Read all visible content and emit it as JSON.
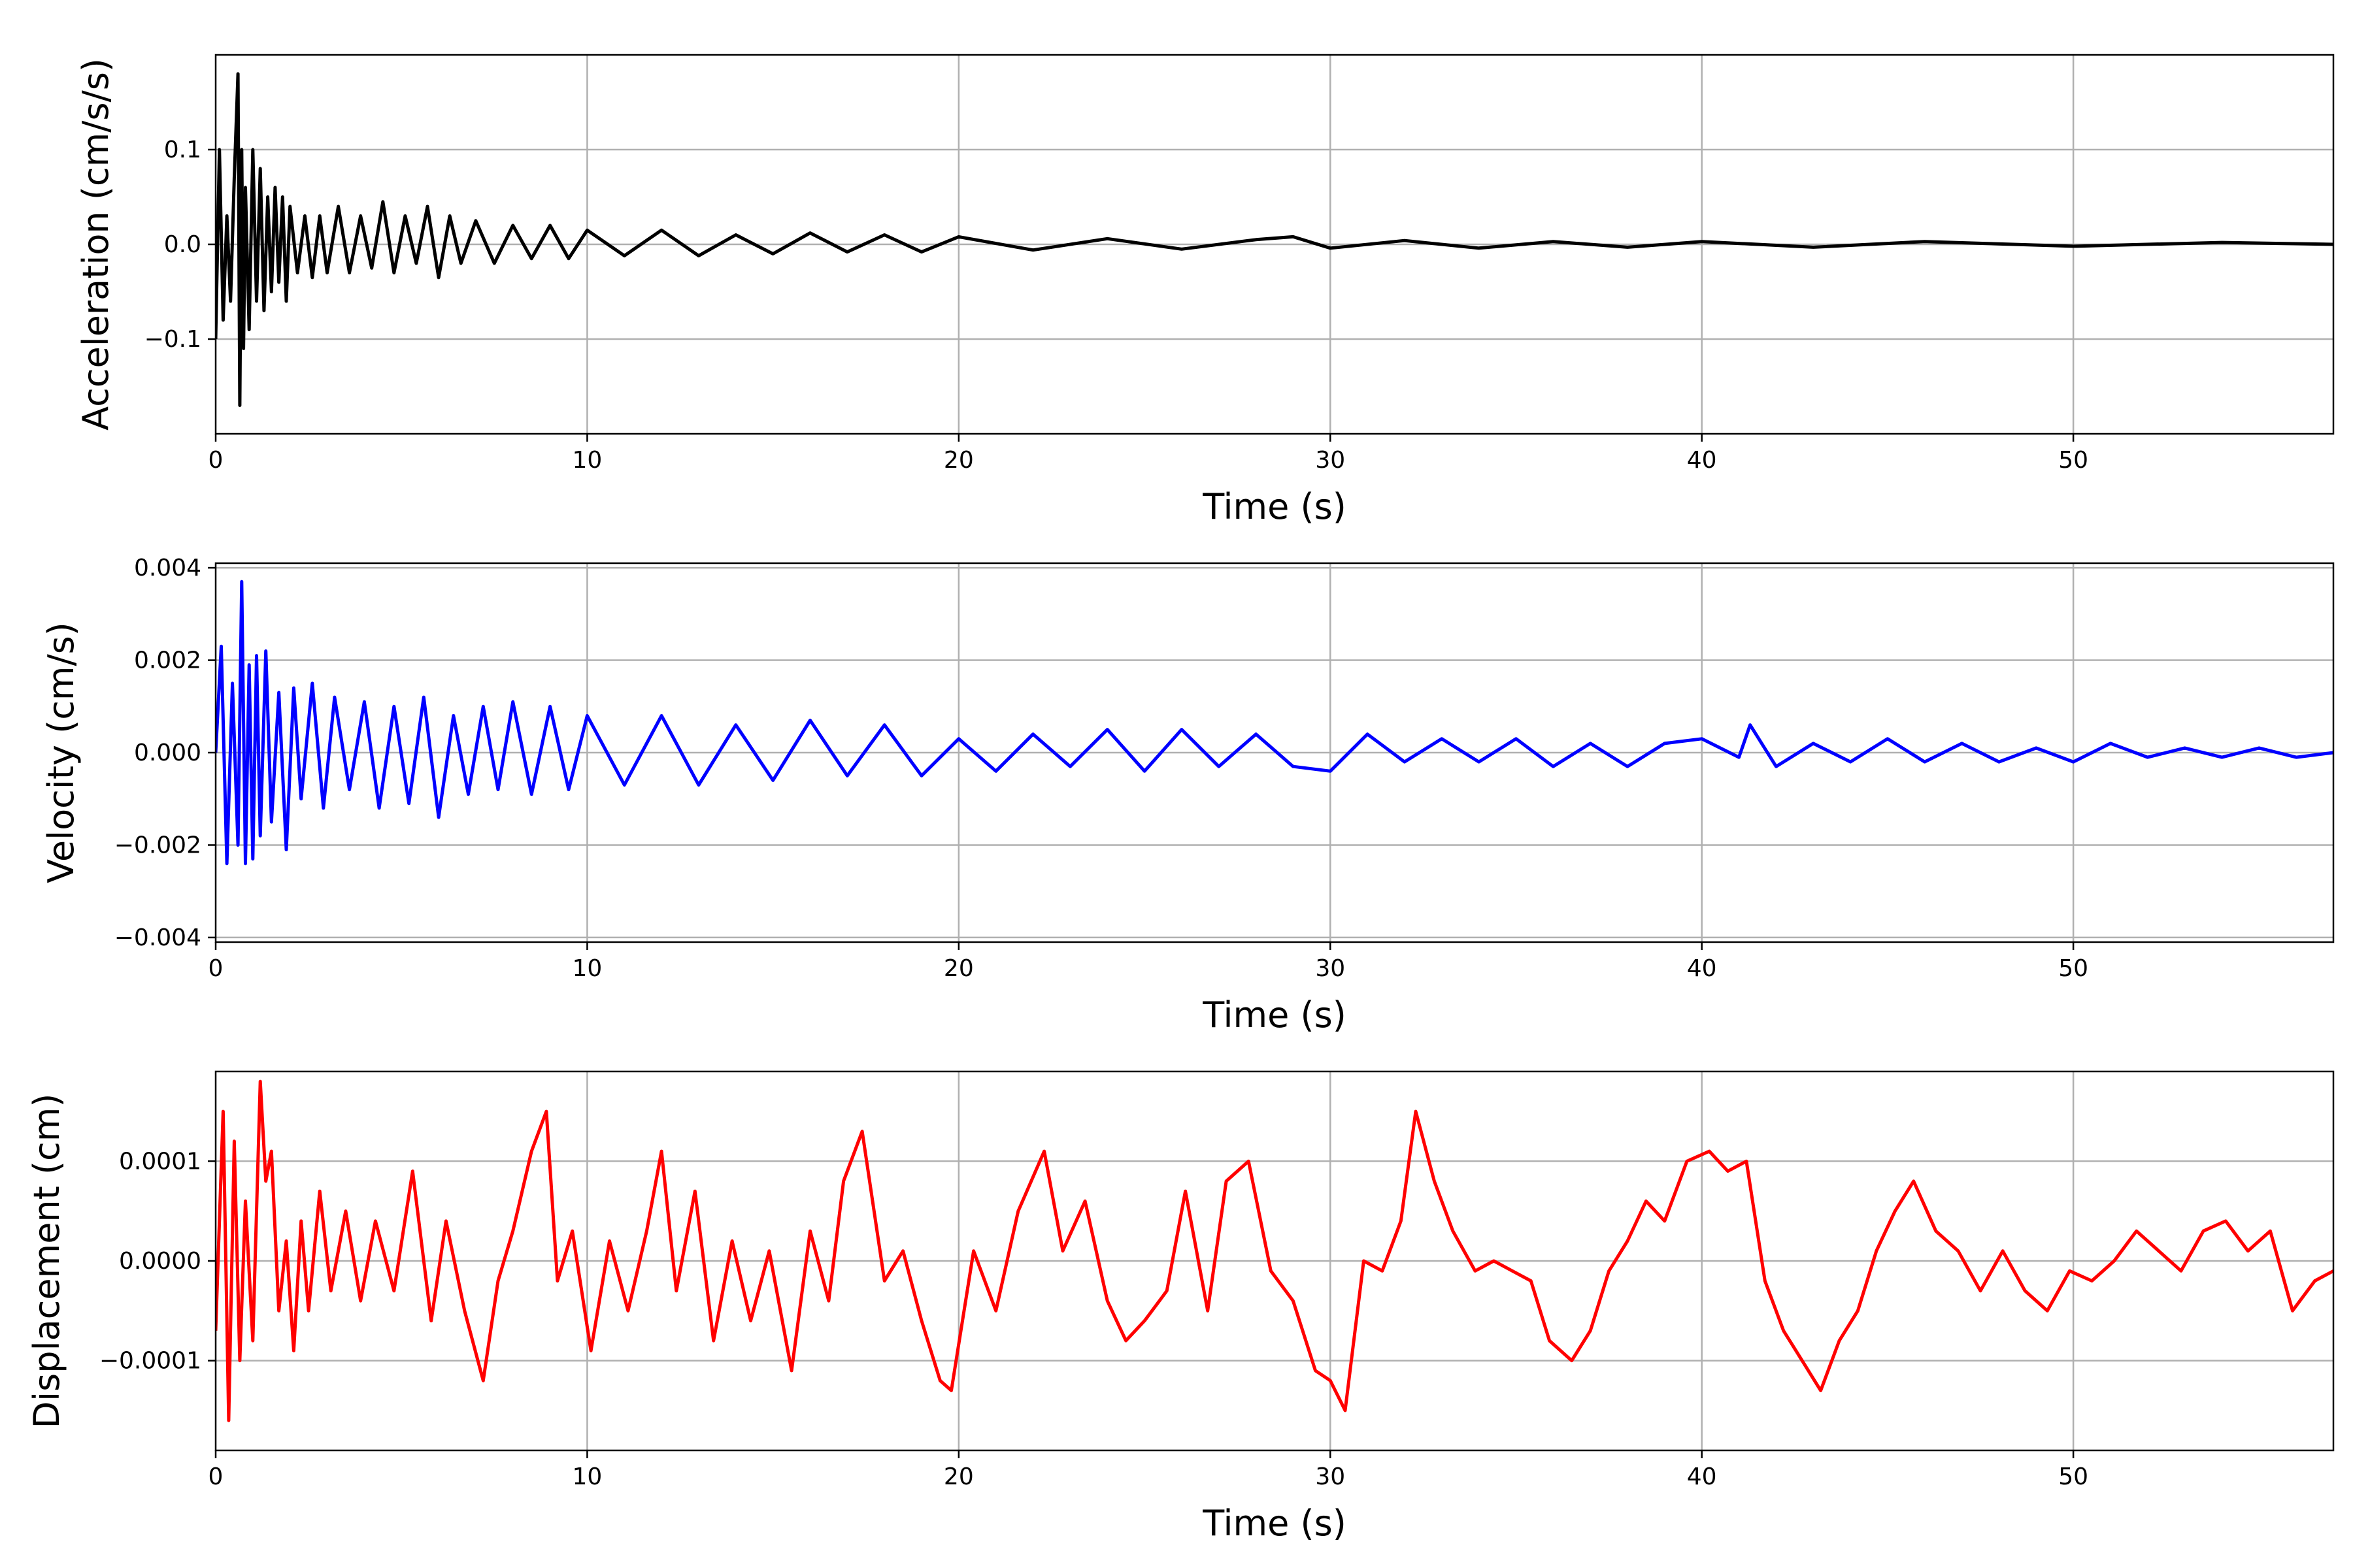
{
  "colors": {
    "acceleration": "#000000",
    "velocity": "#0000ff",
    "displacement": "#ff0000",
    "grid": "#b0b0b0"
  },
  "chart_data": [
    {
      "type": "line",
      "name": "acceleration",
      "xlabel": "Time (s)",
      "ylabel": "Acceleration (cm/s/s)",
      "xlim": [
        0,
        57
      ],
      "ylim": [
        -0.2,
        0.2
      ],
      "xticks": [
        0,
        10,
        20,
        30,
        40,
        50
      ],
      "xtick_labels": [
        "0",
        "10",
        "20",
        "30",
        "40",
        "50"
      ],
      "yticks": [
        -0.1,
        0.0,
        0.1
      ],
      "ytick_labels": [
        "−0.1",
        "0.0",
        "0.1"
      ],
      "grid": true,
      "series": [
        {
          "color": "#000000",
          "x": [
            0,
            0.1,
            0.2,
            0.3,
            0.4,
            0.5,
            0.6,
            0.65,
            0.7,
            0.75,
            0.8,
            0.9,
            1.0,
            1.1,
            1.2,
            1.3,
            1.4,
            1.5,
            1.6,
            1.7,
            1.8,
            1.9,
            2.0,
            2.2,
            2.4,
            2.6,
            2.8,
            3.0,
            3.3,
            3.6,
            3.9,
            4.2,
            4.5,
            4.8,
            5.1,
            5.4,
            5.7,
            6.0,
            6.3,
            6.6,
            7.0,
            7.5,
            8.0,
            8.5,
            9.0,
            9.5,
            10,
            11,
            12,
            13,
            14,
            15,
            16,
            17,
            18,
            19,
            20,
            22,
            24,
            26,
            28,
            29,
            30,
            32,
            34,
            36,
            38,
            40,
            43,
            46,
            50,
            54,
            57
          ],
          "values": [
            -0.1,
            0.1,
            -0.08,
            0.03,
            -0.06,
            0.07,
            0.18,
            -0.17,
            0.1,
            -0.11,
            0.06,
            -0.09,
            0.1,
            -0.06,
            0.08,
            -0.07,
            0.05,
            -0.05,
            0.06,
            -0.04,
            0.05,
            -0.06,
            0.04,
            -0.03,
            0.03,
            -0.035,
            0.03,
            -0.03,
            0.04,
            -0.03,
            0.03,
            -0.025,
            0.045,
            -0.03,
            0.03,
            -0.02,
            0.04,
            -0.035,
            0.03,
            -0.02,
            0.025,
            -0.02,
            0.02,
            -0.015,
            0.02,
            -0.015,
            0.015,
            -0.012,
            0.015,
            -0.012,
            0.01,
            -0.01,
            0.012,
            -0.008,
            0.01,
            -0.008,
            0.008,
            -0.006,
            0.006,
            -0.005,
            0.005,
            0.008,
            -0.004,
            0.004,
            -0.004,
            0.003,
            -0.003,
            0.003,
            -0.003,
            0.003,
            -0.002,
            0.002,
            0.0
          ]
        }
      ]
    },
    {
      "type": "line",
      "name": "velocity",
      "xlabel": "Time (s)",
      "ylabel": "Velocity (cm/s)",
      "xlim": [
        0,
        57
      ],
      "ylim": [
        -0.0041,
        0.0041
      ],
      "xticks": [
        0,
        10,
        20,
        30,
        40,
        50
      ],
      "xtick_labels": [
        "0",
        "10",
        "20",
        "30",
        "40",
        "50"
      ],
      "yticks": [
        -0.004,
        -0.002,
        0.0,
        0.002,
        0.004
      ],
      "ytick_labels": [
        "−0.004",
        "−0.002",
        "0.000",
        "0.002",
        "0.004"
      ],
      "grid": true,
      "series": [
        {
          "color": "#0000ff",
          "x": [
            0,
            0.15,
            0.3,
            0.45,
            0.6,
            0.7,
            0.8,
            0.9,
            1.0,
            1.1,
            1.2,
            1.35,
            1.5,
            1.7,
            1.9,
            2.1,
            2.3,
            2.6,
            2.9,
            3.2,
            3.6,
            4.0,
            4.4,
            4.8,
            5.2,
            5.6,
            6.0,
            6.4,
            6.8,
            7.2,
            7.6,
            8.0,
            8.5,
            9.0,
            9.5,
            10,
            11,
            12,
            13,
            14,
            15,
            16,
            17,
            18,
            19,
            20,
            21,
            22,
            23,
            24,
            25,
            26,
            27,
            28,
            29,
            30,
            31,
            32,
            33,
            34,
            35,
            36,
            37,
            38,
            39,
            40,
            41,
            41.3,
            42,
            43,
            44,
            45,
            46,
            47,
            48,
            49,
            50,
            51,
            52,
            53,
            54,
            55,
            56,
            57
          ],
          "values": [
            0.0,
            0.0023,
            -0.0024,
            0.0015,
            -0.002,
            0.0037,
            -0.0024,
            0.0019,
            -0.0023,
            0.0021,
            -0.0018,
            0.0022,
            -0.0015,
            0.0013,
            -0.0021,
            0.0014,
            -0.001,
            0.0015,
            -0.0012,
            0.0012,
            -0.0008,
            0.0011,
            -0.0012,
            0.001,
            -0.0011,
            0.0012,
            -0.0014,
            0.0008,
            -0.0009,
            0.001,
            -0.0008,
            0.0011,
            -0.0009,
            0.001,
            -0.0008,
            0.0008,
            -0.0007,
            0.0008,
            -0.0007,
            0.0006,
            -0.0006,
            0.0007,
            -0.0005,
            0.0006,
            -0.0005,
            0.0003,
            -0.0004,
            0.0004,
            -0.0003,
            0.0005,
            -0.0004,
            0.0005,
            -0.0003,
            0.0004,
            -0.0003,
            -0.0004,
            0.0004,
            -0.0002,
            0.0003,
            -0.0002,
            0.0003,
            -0.0003,
            0.0002,
            -0.0003,
            0.0002,
            0.0003,
            -0.0001,
            0.0006,
            -0.0003,
            0.0002,
            -0.0002,
            0.0003,
            -0.0002,
            0.0002,
            -0.0002,
            0.0001,
            -0.0002,
            0.0002,
            -0.0001,
            0.0001,
            -0.0001,
            0.0001,
            -0.0001,
            0.0
          ]
        }
      ]
    },
    {
      "type": "line",
      "name": "displacement",
      "xlabel": "Time (s)",
      "ylabel": "Displacement (cm)",
      "xlim": [
        0,
        57
      ],
      "ylim": [
        -0.00019,
        0.00019
      ],
      "xticks": [
        0,
        10,
        20,
        30,
        40,
        50
      ],
      "xtick_labels": [
        "0",
        "10",
        "20",
        "30",
        "40",
        "50"
      ],
      "yticks": [
        -0.0001,
        0.0,
        0.0001
      ],
      "ytick_labels": [
        "−0.0001",
        "0.0000",
        "0.0001"
      ],
      "grid": true,
      "series": [
        {
          "color": "#ff0000",
          "x": [
            0,
            0.2,
            0.35,
            0.5,
            0.65,
            0.8,
            1.0,
            1.2,
            1.35,
            1.5,
            1.7,
            1.9,
            2.1,
            2.3,
            2.5,
            2.8,
            3.1,
            3.5,
            3.9,
            4.3,
            4.8,
            5.3,
            5.8,
            6.2,
            6.7,
            7.2,
            7.6,
            8.0,
            8.5,
            8.9,
            9.2,
            9.6,
            10.1,
            10.6,
            11.1,
            11.6,
            12.0,
            12.4,
            12.9,
            13.4,
            13.9,
            14.4,
            14.9,
            15.5,
            16.0,
            16.5,
            16.9,
            17.4,
            18.0,
            18.5,
            19.0,
            19.5,
            19.8,
            20.4,
            21.0,
            21.6,
            22.3,
            22.8,
            23.4,
            24.0,
            24.5,
            25.0,
            25.6,
            26.1,
            26.7,
            27.2,
            27.8,
            28.4,
            29.0,
            29.6,
            30.0,
            30.4,
            30.9,
            31.4,
            31.9,
            32.3,
            32.8,
            33.3,
            33.9,
            34.4,
            34.9,
            35.4,
            35.9,
            36.5,
            37.0,
            37.5,
            38.0,
            38.5,
            39.0,
            39.6,
            40.2,
            40.7,
            41.2,
            41.7,
            42.2,
            42.7,
            43.2,
            43.7,
            44.2,
            44.7,
            45.2,
            45.7,
            46.3,
            46.9,
            47.5,
            48.1,
            48.7,
            49.3,
            49.9,
            50.5,
            51.1,
            51.7,
            52.3,
            52.9,
            53.5,
            54.1,
            54.7,
            55.3,
            55.9,
            56.5,
            57
          ],
          "values": [
            -7e-05,
            0.00015,
            -0.00016,
            0.00012,
            -0.0001,
            6e-05,
            -8e-05,
            0.00018,
            8e-05,
            0.00011,
            -5e-05,
            2e-05,
            -9e-05,
            4e-05,
            -5e-05,
            7e-05,
            -3e-05,
            5e-05,
            -4e-05,
            4e-05,
            -3e-05,
            9e-05,
            -6e-05,
            4e-05,
            -5e-05,
            -0.00012,
            -2e-05,
            3e-05,
            0.00011,
            0.00015,
            -2e-05,
            3e-05,
            -9e-05,
            2e-05,
            -5e-05,
            3e-05,
            0.00011,
            -3e-05,
            7e-05,
            -8e-05,
            2e-05,
            -6e-05,
            1e-05,
            -0.00011,
            3e-05,
            -4e-05,
            8e-05,
            0.00013,
            -2e-05,
            1e-05,
            -6e-05,
            -0.00012,
            -0.00013,
            1e-05,
            -5e-05,
            5e-05,
            0.00011,
            1e-05,
            6e-05,
            -4e-05,
            -8e-05,
            -6e-05,
            -3e-05,
            7e-05,
            -5e-05,
            8e-05,
            0.0001,
            -1e-05,
            -4e-05,
            -0.00011,
            -0.00012,
            -0.00015,
            0.0,
            -1e-05,
            4e-05,
            0.00015,
            8e-05,
            3e-05,
            -1e-05,
            0.0,
            -1e-05,
            -2e-05,
            -8e-05,
            -0.0001,
            -7e-05,
            -1e-05,
            2e-05,
            6e-05,
            4e-05,
            0.0001,
            0.00011,
            9e-05,
            0.0001,
            -2e-05,
            -7e-05,
            -0.0001,
            -0.00013,
            -8e-05,
            -5e-05,
            1e-05,
            5e-05,
            8e-05,
            3e-05,
            1e-05,
            -3e-05,
            1e-05,
            -3e-05,
            -5e-05,
            -1e-05,
            -2e-05,
            0.0,
            3e-05,
            1e-05,
            -1e-05,
            3e-05,
            4e-05,
            1e-05,
            3e-05,
            -5e-05,
            -2e-05,
            -1e-05
          ]
        }
      ]
    }
  ]
}
